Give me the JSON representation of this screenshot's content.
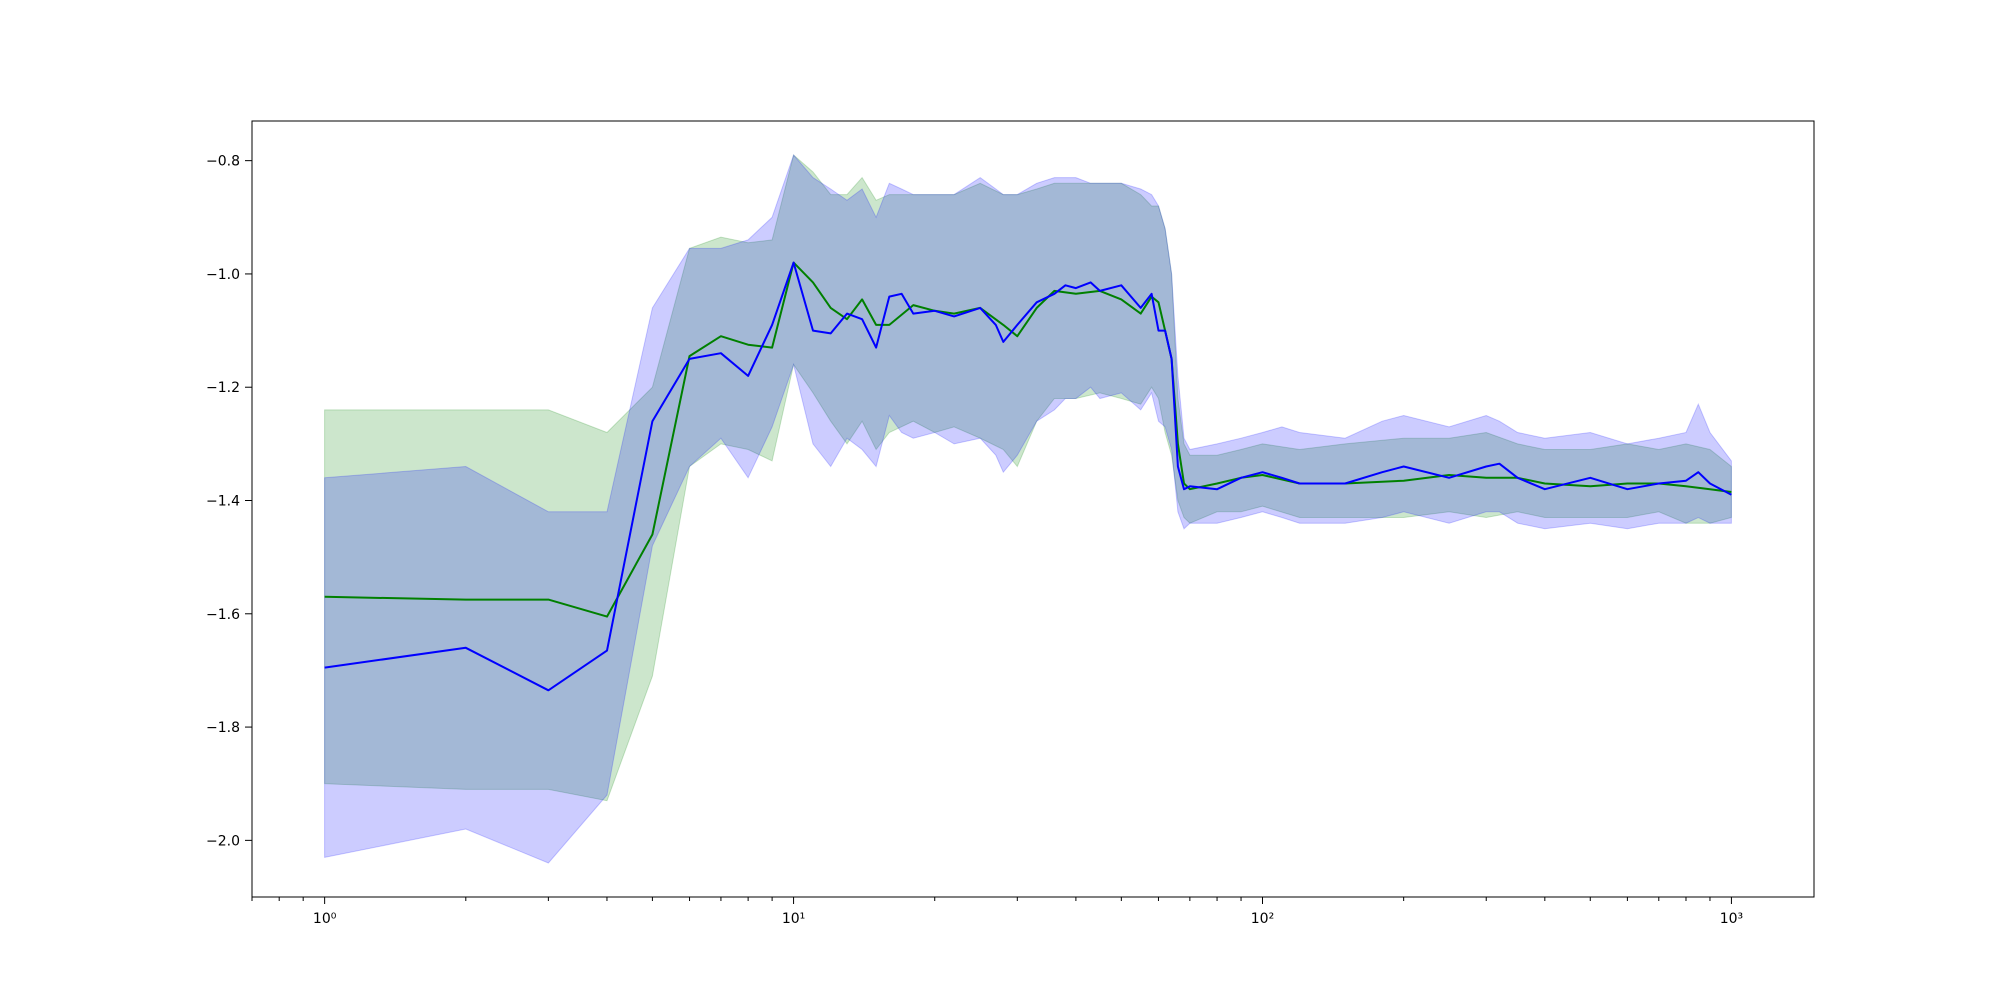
{
  "chart_data": {
    "type": "line",
    "title": "",
    "xlabel": "",
    "ylabel": "",
    "xscale": "log",
    "xlim": [
      0.7,
      1500
    ],
    "ylim": [
      -2.1,
      -0.73
    ],
    "grid": false,
    "x_ticks": [
      {
        "value": 1,
        "label": "10⁰"
      },
      {
        "value": 10,
        "label": "10¹"
      },
      {
        "value": 100,
        "label": "10²"
      },
      {
        "value": 1000,
        "label": "10³"
      }
    ],
    "y_ticks": [
      {
        "value": -0.8,
        "label": "−0.8"
      },
      {
        "value": -1.0,
        "label": "−1.0"
      },
      {
        "value": -1.2,
        "label": "−1.2"
      },
      {
        "value": -1.4,
        "label": "−1.4"
      },
      {
        "value": -1.6,
        "label": "−1.6"
      },
      {
        "value": -1.8,
        "label": "−1.8"
      },
      {
        "value": -2.0,
        "label": "−2.0"
      }
    ],
    "series": [
      {
        "color": "#008000",
        "band_color": "#008000",
        "band_opacity": 0.2,
        "x": [
          1,
          2,
          3,
          4,
          5,
          6,
          7,
          8,
          9,
          10,
          11,
          12,
          13,
          14,
          15,
          16,
          18,
          20,
          22,
          25,
          28,
          30,
          33,
          36,
          40,
          45,
          50,
          55,
          58,
          60,
          62,
          64,
          66,
          68,
          70,
          80,
          90,
          100,
          120,
          150,
          200,
          250,
          300,
          350,
          400,
          500,
          600,
          700,
          800,
          900,
          1000
        ],
        "y": [
          -1.57,
          -1.575,
          -1.575,
          -1.605,
          -1.46,
          -1.145,
          -1.11,
          -1.125,
          -1.13,
          -0.98,
          -1.015,
          -1.06,
          -1.08,
          -1.045,
          -1.09,
          -1.09,
          -1.055,
          -1.065,
          -1.07,
          -1.06,
          -1.09,
          -1.11,
          -1.06,
          -1.03,
          -1.035,
          -1.03,
          -1.045,
          -1.07,
          -1.04,
          -1.05,
          -1.1,
          -1.15,
          -1.3,
          -1.37,
          -1.38,
          -1.37,
          -1.36,
          -1.355,
          -1.37,
          -1.37,
          -1.365,
          -1.355,
          -1.36,
          -1.36,
          -1.37,
          -1.375,
          -1.37,
          -1.37,
          -1.375,
          -1.38,
          -1.385
        ],
        "upper": [
          -1.24,
          -1.24,
          -1.24,
          -1.28,
          -1.2,
          -0.955,
          -0.935,
          -0.945,
          -0.94,
          -0.79,
          -0.82,
          -0.86,
          -0.86,
          -0.83,
          -0.87,
          -0.86,
          -0.86,
          -0.86,
          -0.86,
          -0.84,
          -0.86,
          -0.86,
          -0.85,
          -0.84,
          -0.84,
          -0.84,
          -0.84,
          -0.86,
          -0.88,
          -0.88,
          -0.92,
          -1.0,
          -1.22,
          -1.3,
          -1.32,
          -1.32,
          -1.31,
          -1.3,
          -1.31,
          -1.3,
          -1.29,
          -1.29,
          -1.28,
          -1.3,
          -1.31,
          -1.31,
          -1.3,
          -1.31,
          -1.3,
          -1.31,
          -1.34
        ],
        "lower": [
          -1.9,
          -1.91,
          -1.91,
          -1.93,
          -1.71,
          -1.34,
          -1.3,
          -1.31,
          -1.33,
          -1.16,
          -1.21,
          -1.26,
          -1.3,
          -1.26,
          -1.31,
          -1.28,
          -1.26,
          -1.28,
          -1.27,
          -1.29,
          -1.31,
          -1.34,
          -1.26,
          -1.22,
          -1.22,
          -1.21,
          -1.22,
          -1.23,
          -1.2,
          -1.22,
          -1.28,
          -1.32,
          -1.4,
          -1.43,
          -1.44,
          -1.42,
          -1.42,
          -1.41,
          -1.43,
          -1.43,
          -1.43,
          -1.42,
          -1.43,
          -1.42,
          -1.43,
          -1.43,
          -1.43,
          -1.42,
          -1.44,
          -1.44,
          -1.43
        ]
      },
      {
        "color": "#0000ff",
        "band_color": "#0000ff",
        "band_opacity": 0.2,
        "x": [
          1,
          2,
          3,
          4,
          5,
          6,
          7,
          8,
          9,
          10,
          11,
          12,
          13,
          14,
          15,
          16,
          17,
          18,
          20,
          22,
          25,
          27,
          28,
          30,
          33,
          36,
          38,
          40,
          43,
          45,
          50,
          55,
          58,
          60,
          62,
          64,
          66,
          68,
          70,
          80,
          90,
          100,
          110,
          120,
          150,
          180,
          200,
          250,
          300,
          320,
          350,
          400,
          500,
          600,
          700,
          800,
          850,
          900,
          1000
        ],
        "y": [
          -1.695,
          -1.66,
          -1.735,
          -1.665,
          -1.26,
          -1.15,
          -1.14,
          -1.18,
          -1.09,
          -0.98,
          -1.1,
          -1.105,
          -1.07,
          -1.08,
          -1.13,
          -1.04,
          -1.035,
          -1.07,
          -1.065,
          -1.075,
          -1.06,
          -1.09,
          -1.12,
          -1.09,
          -1.05,
          -1.035,
          -1.02,
          -1.025,
          -1.015,
          -1.03,
          -1.02,
          -1.06,
          -1.035,
          -1.1,
          -1.1,
          -1.15,
          -1.34,
          -1.38,
          -1.375,
          -1.38,
          -1.36,
          -1.35,
          -1.36,
          -1.37,
          -1.37,
          -1.35,
          -1.34,
          -1.36,
          -1.34,
          -1.335,
          -1.36,
          -1.38,
          -1.36,
          -1.38,
          -1.37,
          -1.365,
          -1.35,
          -1.37,
          -1.39
        ],
        "upper": [
          -1.36,
          -1.34,
          -1.42,
          -1.42,
          -1.06,
          -0.955,
          -0.955,
          -0.94,
          -0.9,
          -0.79,
          -0.83,
          -0.85,
          -0.87,
          -0.85,
          -0.9,
          -0.84,
          -0.85,
          -0.86,
          -0.86,
          -0.86,
          -0.83,
          -0.85,
          -0.86,
          -0.86,
          -0.84,
          -0.83,
          -0.83,
          -0.83,
          -0.84,
          -0.84,
          -0.84,
          -0.85,
          -0.86,
          -0.88,
          -0.92,
          -1.0,
          -1.18,
          -1.29,
          -1.31,
          -1.3,
          -1.29,
          -1.28,
          -1.27,
          -1.28,
          -1.29,
          -1.26,
          -1.25,
          -1.27,
          -1.25,
          -1.26,
          -1.28,
          -1.29,
          -1.28,
          -1.3,
          -1.29,
          -1.28,
          -1.23,
          -1.28,
          -1.33
        ],
        "lower": [
          -2.03,
          -1.98,
          -2.04,
          -1.92,
          -1.48,
          -1.34,
          -1.29,
          -1.36,
          -1.27,
          -1.16,
          -1.3,
          -1.34,
          -1.29,
          -1.31,
          -1.34,
          -1.25,
          -1.28,
          -1.29,
          -1.28,
          -1.3,
          -1.29,
          -1.32,
          -1.35,
          -1.32,
          -1.26,
          -1.24,
          -1.22,
          -1.22,
          -1.2,
          -1.22,
          -1.21,
          -1.24,
          -1.21,
          -1.26,
          -1.27,
          -1.31,
          -1.42,
          -1.45,
          -1.44,
          -1.44,
          -1.43,
          -1.42,
          -1.43,
          -1.44,
          -1.44,
          -1.43,
          -1.42,
          -1.44,
          -1.42,
          -1.42,
          -1.44,
          -1.45,
          -1.44,
          -1.45,
          -1.44,
          -1.44,
          -1.43,
          -1.44,
          -1.44
        ]
      }
    ]
  }
}
